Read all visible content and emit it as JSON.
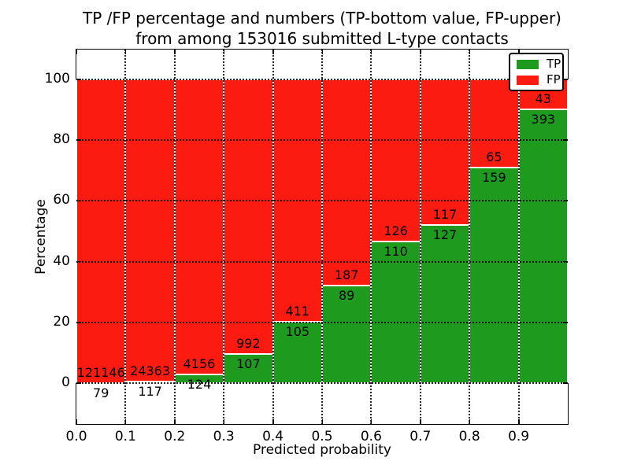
{
  "figure": {
    "title_line1": "TP /FP percentage and numbers (TP-bottom value, FP-upper)",
    "title_line2": "from among 153016 submitted L-type contacts"
  },
  "chart_data": {
    "type": "bar",
    "stacking": "percent (each 0.1-wide bin normalized to 100%, TP on bottom, FP on top)",
    "title": "TP /FP percentage and numbers (TP-bottom value, FP-upper)\nfrom among 153016 submitted L-type contacts",
    "total_submitted": 153016,
    "xlabel": "Predicted probability",
    "ylabel": "Percentage",
    "xlim": [
      0.0,
      1.0
    ],
    "ylim": [
      -13,
      110
    ],
    "bin_width": 0.1,
    "xticklabels": [
      "0.0",
      "0.1",
      "0.2",
      "0.3",
      "0.4",
      "0.5",
      "0.6",
      "0.7",
      "0.8",
      "0.9"
    ],
    "yticks": [
      0,
      20,
      40,
      60,
      80,
      100
    ],
    "grid": "dotted black, drawn above bars; bars have white edges",
    "series": [
      {
        "name": "TP",
        "color": "#1e9b1e",
        "counts": [
          79,
          117,
          124,
          107,
          105,
          89,
          110,
          127,
          159,
          393
        ]
      },
      {
        "name": "FP",
        "color": "#fb1b10",
        "counts": [
          121146,
          24363,
          4156,
          992,
          411,
          187,
          126,
          117,
          65,
          43
        ]
      }
    ],
    "tp_percent_per_bin": [
      0.07,
      0.48,
      2.9,
      9.74,
      20.35,
      32.25,
      46.61,
      52.05,
      70.98,
      90.14
    ],
    "legend": {
      "position": "upper right",
      "items": [
        {
          "label": "TP",
          "color": "#1e9b1e"
        },
        {
          "label": "FP",
          "color": "#fb1b10"
        }
      ]
    }
  }
}
